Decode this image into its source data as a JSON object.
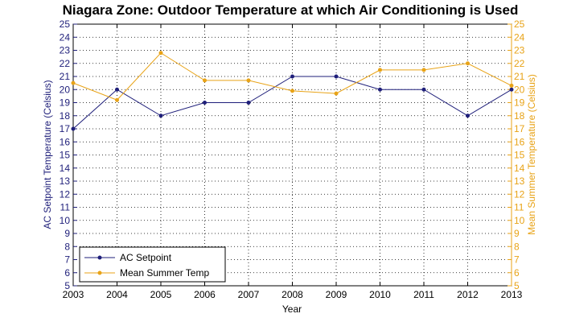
{
  "chart_data": {
    "type": "line",
    "title": "Niagara Zone: Outdoor Temperature at which Air Conditioning is Used",
    "xlabel": "Year",
    "ylabel_left": "AC Setpoint Temperature (Celsius)",
    "ylabel_right": "Mean Summer Temperature (Celsius)",
    "x": [
      2003,
      2004,
      2005,
      2006,
      2007,
      2008,
      2009,
      2010,
      2011,
      2012,
      2013
    ],
    "xlim": [
      2003,
      2013
    ],
    "ylim_left": [
      5,
      25
    ],
    "ylim_right": [
      5,
      25
    ],
    "grid": true,
    "legend_position": "bottom-left",
    "series": [
      {
        "name": "AC Setpoint",
        "axis": "left",
        "color": "#1f1f7a",
        "values": [
          17,
          20,
          18,
          19,
          19,
          21,
          21,
          20,
          20,
          18,
          20
        ]
      },
      {
        "name": "Mean Summer Temp",
        "axis": "right",
        "color": "#e8a317",
        "values": [
          20.5,
          19.2,
          22.8,
          20.7,
          20.7,
          19.9,
          19.7,
          21.5,
          21.5,
          22.0,
          20.3
        ]
      }
    ],
    "left_axis_color": "#1f1f7a",
    "right_axis_color": "#e8a317"
  }
}
